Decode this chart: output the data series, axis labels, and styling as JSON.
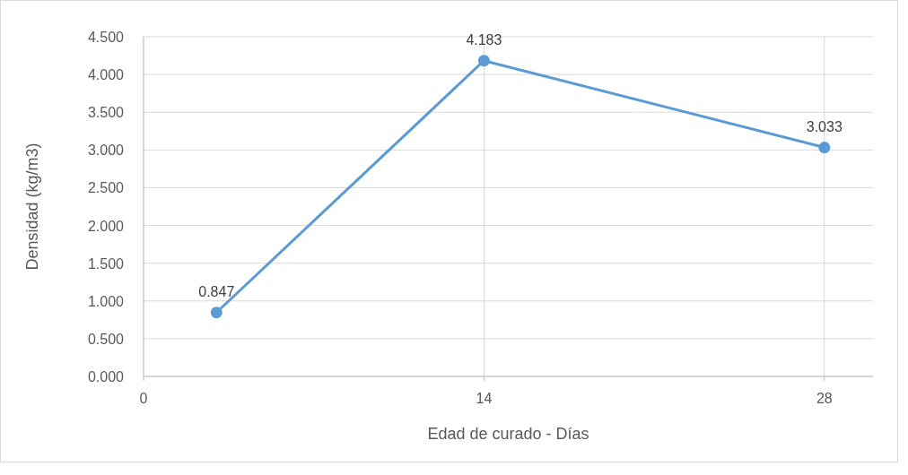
{
  "chart_data": {
    "type": "line",
    "xlabel": "Edad de curado - Días",
    "ylabel": "Densidad (kg/m3)",
    "x": [
      3,
      14,
      28
    ],
    "series": [
      {
        "color": "#5b9bd5",
        "values": [
          0.847,
          4.183,
          3.033
        ]
      }
    ],
    "xlim": [
      0,
      30
    ],
    "xticks": [
      0,
      14,
      28
    ],
    "ylim": [
      0,
      4.5
    ],
    "yticks": [
      {
        "value": 0,
        "label": "0.000"
      },
      {
        "value": 0.5,
        "label": "0.500"
      },
      {
        "value": 1,
        "label": "1.000"
      },
      {
        "value": 1.5,
        "label": "1.500"
      },
      {
        "value": 2,
        "label": "2.000"
      },
      {
        "value": 2.5,
        "label": "2.500"
      },
      {
        "value": 3,
        "label": "3.000"
      },
      {
        "value": 3.5,
        "label": "3.500"
      },
      {
        "value": 4,
        "label": "4.000"
      },
      {
        "value": 4.5,
        "label": "4.500"
      }
    ],
    "grid": true,
    "marker": "circle",
    "line_style": "solid",
    "data_labels": true
  }
}
